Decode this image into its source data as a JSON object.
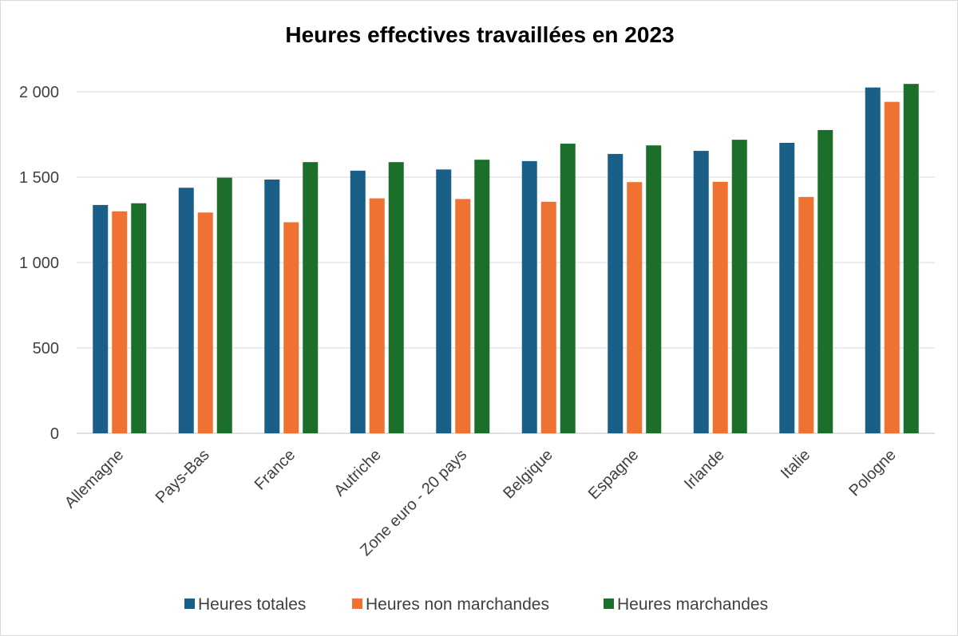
{
  "chart_data": {
    "type": "bar",
    "title": "Heures effectives travaillées en 2023",
    "xlabel": "",
    "ylabel": "",
    "categories": [
      "Allemagne",
      "Pays-Bas",
      "France",
      "Autriche",
      "Zone euro - 20 pays",
      "Belgique",
      "Espagne",
      "Irlande",
      "Italie",
      "Pologne"
    ],
    "series": [
      {
        "name": "Heures totales",
        "color": "#1a5f87",
        "values": [
          1337,
          1438,
          1486,
          1538,
          1545,
          1594,
          1636,
          1654,
          1701,
          2025
        ]
      },
      {
        "name": "Heures non marchandes",
        "color": "#ef7232",
        "values": [
          1300,
          1293,
          1236,
          1376,
          1372,
          1356,
          1471,
          1473,
          1384,
          1941
        ]
      },
      {
        "name": "Heures marchandes",
        "color": "#1b6f2a",
        "values": [
          1347,
          1497,
          1588,
          1588,
          1602,
          1696,
          1686,
          1719,
          1776,
          2046
        ]
      }
    ],
    "ylim": [
      0,
      2000
    ],
    "yticks": [
      0,
      500,
      1000,
      1500,
      2000
    ],
    "ytick_labels": [
      "0",
      "500",
      "1 000",
      "1 500",
      "2 000"
    ],
    "grid": true,
    "legend_position": "bottom"
  }
}
